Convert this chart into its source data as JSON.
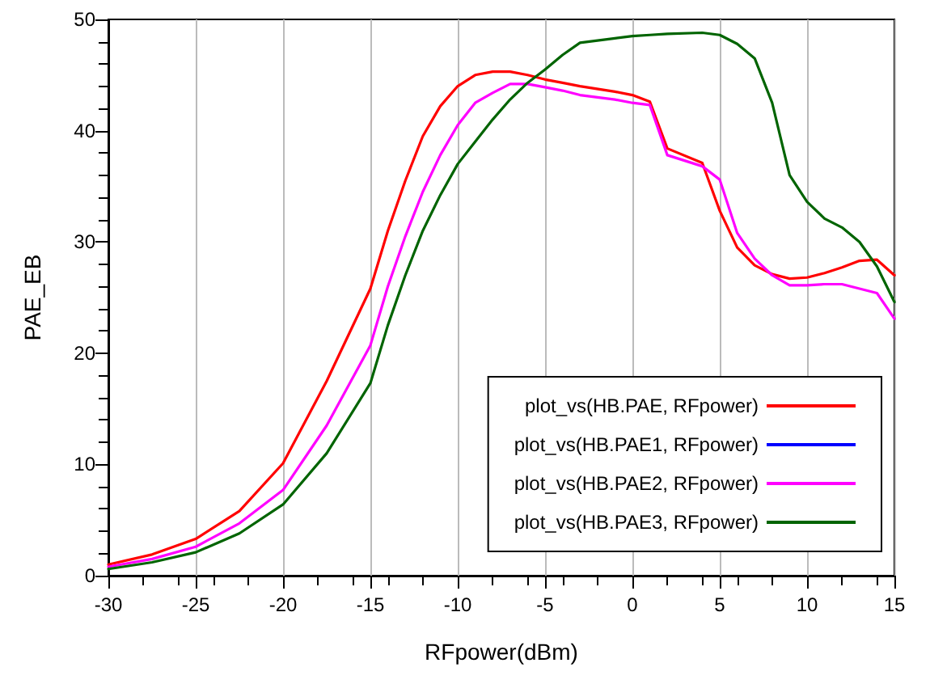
{
  "chart_data": {
    "type": "line",
    "xlabel": "RFpower(dBm)",
    "ylabel": "PAE_EB",
    "x": [
      -30,
      -27.5,
      -25,
      -22.5,
      -20,
      -17.5,
      -15,
      -14,
      -13,
      -12,
      -11,
      -10,
      -9,
      -8,
      -7,
      -6,
      -5,
      -4,
      -3,
      -1,
      0,
      1,
      2,
      4,
      5,
      6,
      7,
      8,
      9,
      10,
      11,
      12,
      13,
      14,
      15
    ],
    "series": [
      {
        "name": "plot_vs(HB.PAE, RFpower)",
        "color": "#ff0000",
        "values": [
          1.0,
          1.9,
          3.3,
          5.8,
          10.1,
          17.5,
          25.8,
          31,
          35.5,
          39.5,
          42.2,
          44,
          45,
          45.3,
          45.3,
          45,
          44.6,
          44.3,
          44,
          43.5,
          43.2,
          42.6,
          38.4,
          37.1,
          32.8,
          29.5,
          27.9,
          27.1,
          26.7,
          26.8,
          27.2,
          27.7,
          28.3,
          28.4,
          27.0
        ]
      },
      {
        "name": "plot_vs(HB.PAE1, RFpower)",
        "color": "#0000ff",
        "values": [
          null,
          null,
          null,
          null,
          null,
          null,
          null,
          null,
          null,
          null,
          null,
          null,
          null,
          null,
          null,
          null,
          null,
          null,
          null,
          null,
          null,
          null,
          null,
          null,
          null,
          null,
          null,
          null,
          null,
          null,
          null,
          null,
          null,
          null,
          null
        ]
      },
      {
        "name": "plot_vs(HB.PAE2, RFpower)",
        "color": "#ff00ff",
        "values": [
          0.8,
          1.5,
          2.6,
          4.7,
          7.7,
          13.5,
          20.7,
          26,
          30.5,
          34.5,
          37.8,
          40.5,
          42.5,
          43.4,
          44.2,
          44.2,
          43.9,
          43.6,
          43.2,
          42.8,
          42.5,
          42.3,
          37.8,
          36.8,
          35.6,
          30.8,
          28.5,
          27,
          26.1,
          26.1,
          26.2,
          26.2,
          25.8,
          25.4,
          23.1
        ]
      },
      {
        "name": "plot_vs(HB.PAE3, RFpower)",
        "color": "#006400",
        "values": [
          0.6,
          1.2,
          2.1,
          3.8,
          6.4,
          11,
          17.3,
          22.5,
          27,
          31,
          34.2,
          37,
          39,
          41,
          42.8,
          44.3,
          45.5,
          46.8,
          47.9,
          48.3,
          48.5,
          48.6,
          48.7,
          48.8,
          48.6,
          47.8,
          46.5,
          42.5,
          36,
          33.6,
          32.1,
          31.3,
          30,
          27.8,
          24.6
        ]
      }
    ],
    "xlim": [
      -30,
      15
    ],
    "xticks": [
      -30,
      -25,
      -20,
      -15,
      -10,
      -5,
      0,
      5,
      10,
      15
    ],
    "ylim": [
      0,
      50
    ],
    "yticks": [
      0,
      10,
      20,
      30,
      40,
      50
    ],
    "grid": "x",
    "legend": "bottom right",
    "marker": "none",
    "line_style": "solid"
  }
}
